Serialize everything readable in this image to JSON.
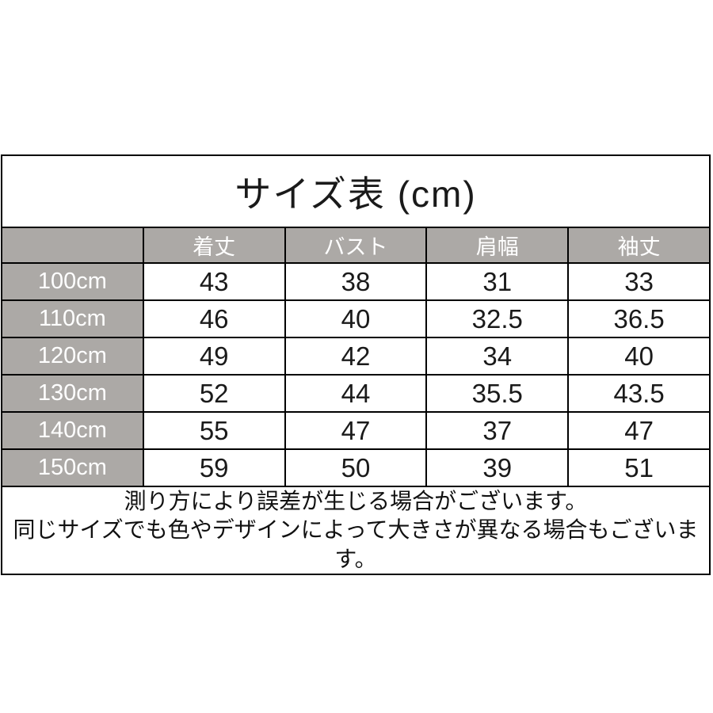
{
  "page": {
    "background": "#ffffff"
  },
  "size_chart": {
    "title": "サイズ表 (cm)",
    "unit": "cm",
    "columns": [
      "着丈",
      "バスト",
      "肩幅",
      "袖丈"
    ],
    "rows": [
      {
        "label": "100cm",
        "values": [
          "43",
          "38",
          "31",
          "33"
        ]
      },
      {
        "label": "110cm",
        "values": [
          "46",
          "40",
          "32.5",
          "36.5"
        ]
      },
      {
        "label": "120cm",
        "values": [
          "49",
          "42",
          "34",
          "40"
        ]
      },
      {
        "label": "130cm",
        "values": [
          "52",
          "44",
          "35.5",
          "43.5"
        ]
      },
      {
        "label": "140cm",
        "values": [
          "55",
          "47",
          "37",
          "47"
        ]
      },
      {
        "label": "150cm",
        "values": [
          "59",
          "50",
          "39",
          "51"
        ]
      }
    ],
    "notes": [
      "測り方により誤差が生じる場合がございます。",
      "同じサイズでも色やデザインによって大きさが異なる場合もございます。"
    ],
    "colors": {
      "header_bg": "#ACA9A6",
      "header_text": "#ffffff",
      "border": "#000000",
      "cell_text": "#1a1a1a",
      "background": "#ffffff"
    }
  },
  "chart_data": {
    "type": "table",
    "title": "サイズ表 (cm)",
    "columns": [
      "",
      "着丈",
      "バスト",
      "肩幅",
      "袖丈"
    ],
    "rows": [
      [
        "100cm",
        43,
        38,
        31,
        33
      ],
      [
        "110cm",
        46,
        40,
        32.5,
        36.5
      ],
      [
        "120cm",
        49,
        42,
        34,
        40
      ],
      [
        "130cm",
        52,
        44,
        35.5,
        43.5
      ],
      [
        "140cm",
        55,
        47,
        37,
        47
      ],
      [
        "150cm",
        59,
        50,
        39,
        51
      ]
    ],
    "notes": [
      "測り方により誤差が生じる場合がございます。",
      "同じサイズでも色やデザインによって大きさが異なる場合もございます。"
    ],
    "layout": {
      "header_row_shaded": true,
      "label_column_shaded": true,
      "grid": true
    }
  }
}
